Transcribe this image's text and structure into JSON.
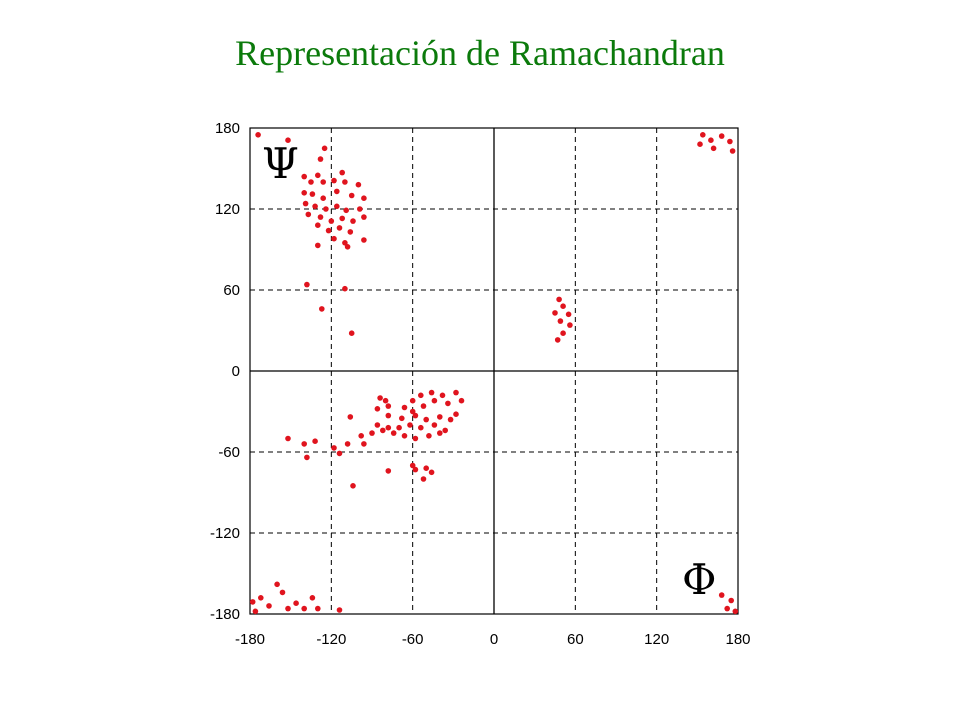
{
  "title": "Representación de Ramachandran",
  "title_color": "#0b7a0b",
  "point_color": "#e0141e",
  "chart_data": {
    "type": "scatter",
    "title": "Representación de Ramachandran",
    "xlabel": "Φ",
    "ylabel": "Ψ",
    "xlim": [
      -180,
      180
    ],
    "ylim": [
      -180,
      180
    ],
    "x_ticks": [
      -180,
      -120,
      -60,
      0,
      60,
      120,
      180
    ],
    "y_ticks": [
      180,
      120,
      60,
      0,
      -60,
      -120,
      -180
    ],
    "grid": true,
    "grid_style": "dashed",
    "points": [
      [
        -174,
        175
      ],
      [
        -152,
        171
      ],
      [
        -128,
        157
      ],
      [
        -125,
        165
      ],
      [
        -140,
        144
      ],
      [
        -135,
        140
      ],
      [
        -130,
        145
      ],
      [
        -126,
        140
      ],
      [
        -118,
        141
      ],
      [
        -110,
        140
      ],
      [
        -100,
        138
      ],
      [
        -112,
        147
      ],
      [
        -140,
        132
      ],
      [
        -134,
        131
      ],
      [
        -126,
        128
      ],
      [
        -116,
        133
      ],
      [
        -105,
        130
      ],
      [
        -96,
        128
      ],
      [
        -139,
        124
      ],
      [
        -132,
        122
      ],
      [
        -124,
        120
      ],
      [
        -116,
        122
      ],
      [
        -109,
        119
      ],
      [
        -99,
        120
      ],
      [
        -137,
        116
      ],
      [
        -128,
        114
      ],
      [
        -120,
        111
      ],
      [
        -112,
        113
      ],
      [
        -104,
        111
      ],
      [
        -96,
        114
      ],
      [
        -130,
        108
      ],
      [
        -122,
        104
      ],
      [
        -114,
        106
      ],
      [
        -106,
        103
      ],
      [
        -118,
        98
      ],
      [
        -110,
        95
      ],
      [
        -130,
        93
      ],
      [
        -108,
        92
      ],
      [
        -96,
        97
      ],
      [
        -138,
        64
      ],
      [
        -110,
        61
      ],
      [
        -127,
        46
      ],
      [
        -105,
        28
      ],
      [
        48,
        53
      ],
      [
        51,
        48
      ],
      [
        45,
        43
      ],
      [
        55,
        42
      ],
      [
        49,
        37
      ],
      [
        56,
        34
      ],
      [
        51,
        28
      ],
      [
        47,
        23
      ],
      [
        154,
        175
      ],
      [
        160,
        171
      ],
      [
        168,
        174
      ],
      [
        174,
        170
      ],
      [
        162,
        165
      ],
      [
        176,
        163
      ],
      [
        152,
        168
      ],
      [
        -84,
        -20
      ],
      [
        -80,
        -22
      ],
      [
        -78,
        -26
      ],
      [
        -86,
        -28
      ],
      [
        -60,
        -22
      ],
      [
        -54,
        -18
      ],
      [
        -46,
        -16
      ],
      [
        -38,
        -18
      ],
      [
        -28,
        -16
      ],
      [
        -66,
        -27
      ],
      [
        -60,
        -30
      ],
      [
        -52,
        -26
      ],
      [
        -44,
        -22
      ],
      [
        -34,
        -24
      ],
      [
        -24,
        -22
      ],
      [
        -106,
        -34
      ],
      [
        -78,
        -33
      ],
      [
        -68,
        -35
      ],
      [
        -58,
        -33
      ],
      [
        -50,
        -36
      ],
      [
        -40,
        -34
      ],
      [
        -32,
        -36
      ],
      [
        -86,
        -40
      ],
      [
        -78,
        -42
      ],
      [
        -70,
        -42
      ],
      [
        -62,
        -40
      ],
      [
        -54,
        -42
      ],
      [
        -44,
        -40
      ],
      [
        -36,
        -44
      ],
      [
        -28,
        -32
      ],
      [
        -108,
        -54
      ],
      [
        -98,
        -48
      ],
      [
        -90,
        -46
      ],
      [
        -82,
        -44
      ],
      [
        -74,
        -46
      ],
      [
        -66,
        -48
      ],
      [
        -58,
        -50
      ],
      [
        -48,
        -48
      ],
      [
        -40,
        -46
      ],
      [
        -152,
        -50
      ],
      [
        -140,
        -54
      ],
      [
        -132,
        -52
      ],
      [
        -118,
        -57
      ],
      [
        -114,
        -61
      ],
      [
        -96,
        -54
      ],
      [
        -138,
        -64
      ],
      [
        -60,
        -70
      ],
      [
        -58,
        -73
      ],
      [
        -50,
        -72
      ],
      [
        -46,
        -75
      ],
      [
        -52,
        -80
      ],
      [
        -78,
        -74
      ],
      [
        -104,
        -85
      ],
      [
        -178,
        -171
      ],
      [
        -172,
        -168
      ],
      [
        -166,
        -174
      ],
      [
        -160,
        -158
      ],
      [
        -152,
        -176
      ],
      [
        -146,
        -172
      ],
      [
        -140,
        -176
      ],
      [
        -134,
        -168
      ],
      [
        -130,
        -176
      ],
      [
        -156,
        -164
      ],
      [
        -176,
        -178
      ],
      [
        -114,
        -177
      ],
      [
        168,
        -166
      ],
      [
        175,
        -170
      ],
      [
        172,
        -176
      ],
      [
        178,
        -178
      ]
    ]
  }
}
